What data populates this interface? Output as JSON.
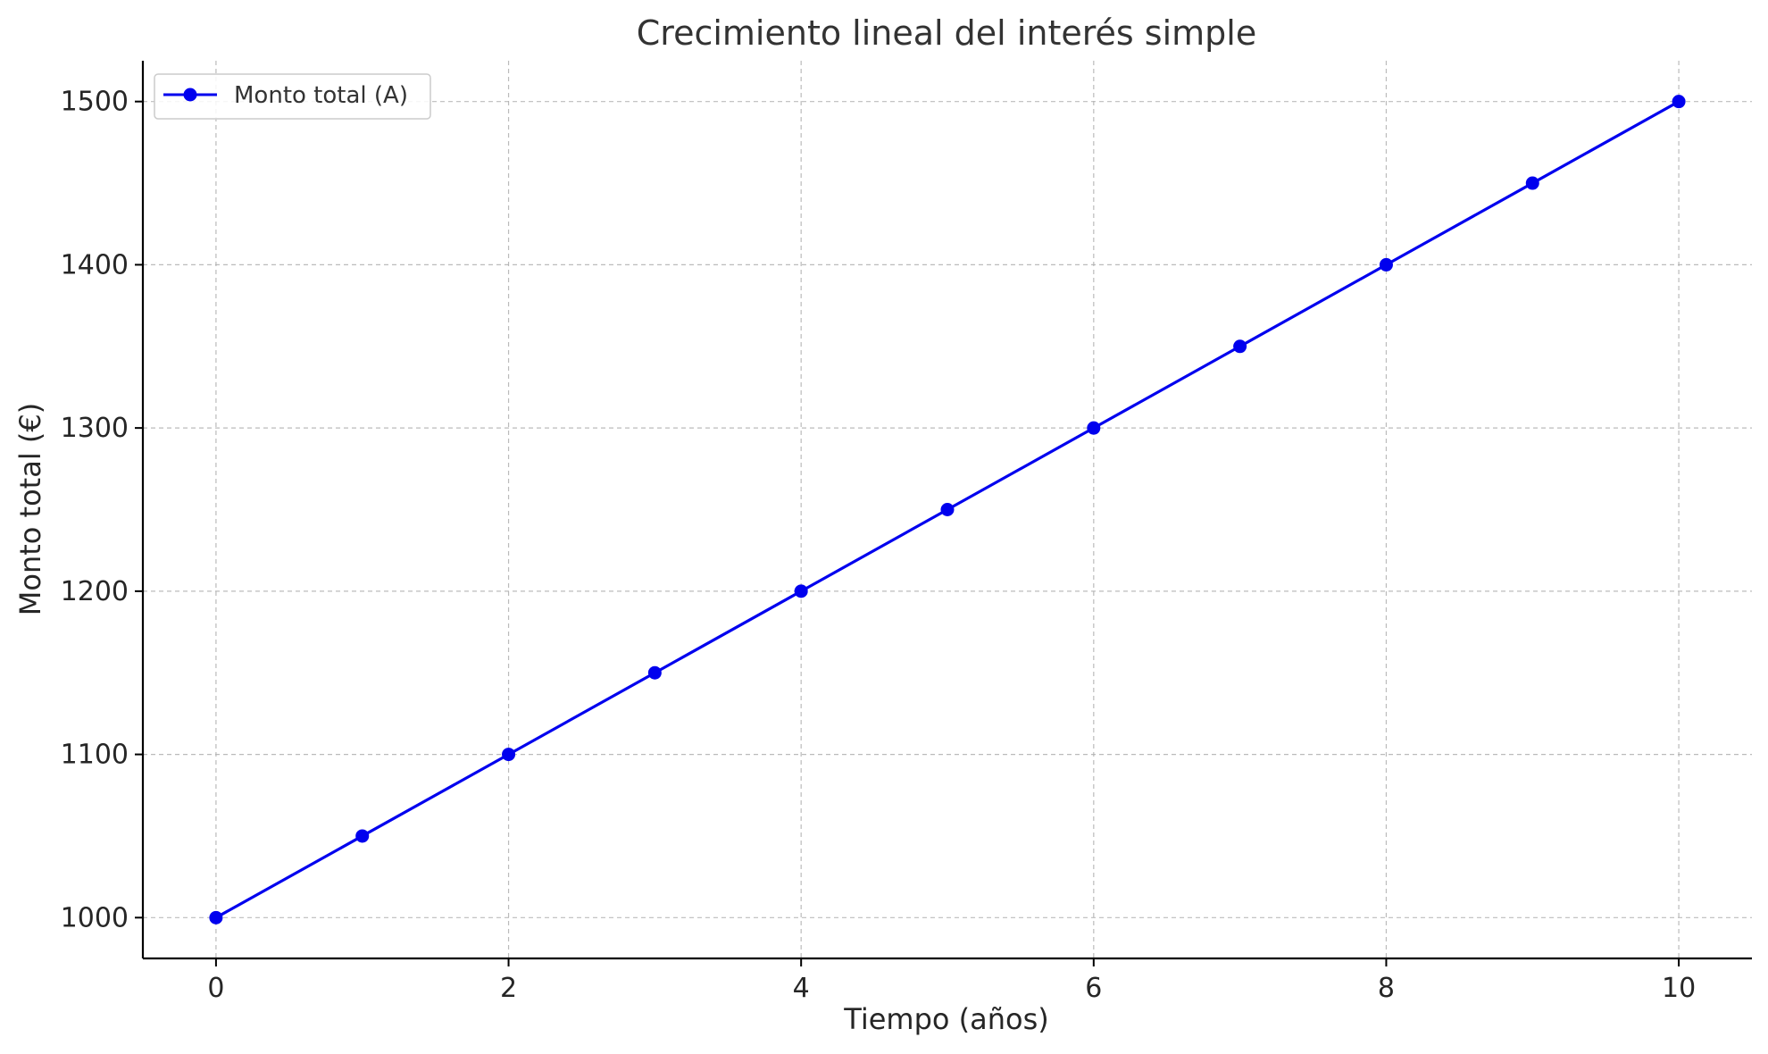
{
  "chart_data": {
    "type": "line",
    "title": "Crecimiento lineal del interés simple",
    "xlabel": "Tiempo (años)",
    "ylabel": "Monto total (€)",
    "x": [
      0,
      1,
      2,
      3,
      4,
      5,
      6,
      7,
      8,
      9,
      10
    ],
    "series": [
      {
        "name": "Monto total (A)",
        "color": "#0000ee",
        "marker": "circle",
        "values": [
          1000,
          1050,
          1100,
          1150,
          1200,
          1250,
          1300,
          1350,
          1400,
          1450,
          1500
        ]
      }
    ],
    "xlim": [
      -0.5,
      10.5
    ],
    "ylim": [
      975,
      1525
    ],
    "xticks": [
      0,
      2,
      4,
      6,
      8,
      10
    ],
    "yticks": [
      1000,
      1100,
      1200,
      1300,
      1400,
      1500
    ],
    "grid": true,
    "legend_position": "upper-left"
  }
}
